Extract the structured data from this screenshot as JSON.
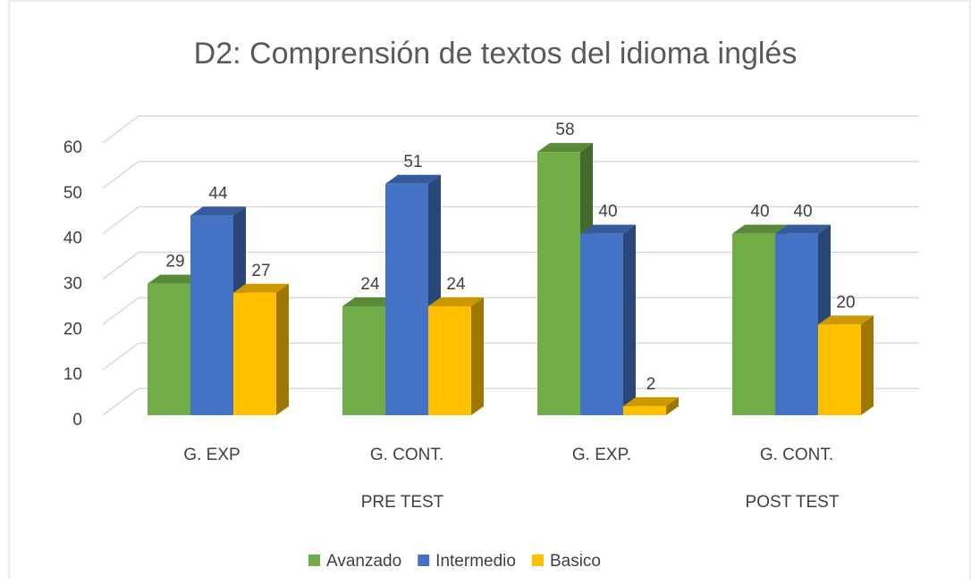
{
  "chart_data": {
    "type": "bar3d",
    "title": "D2: Comprensión de textos del idioma inglés",
    "categories": [
      "G. EXP",
      "G. CONT.",
      "G. EXP.",
      "G. CONT."
    ],
    "groups": [
      "PRE TEST",
      "POST TEST"
    ],
    "series": [
      {
        "name": "Avanzado",
        "color": "#70ad47",
        "values": [
          29,
          24,
          58,
          40
        ]
      },
      {
        "name": "Intermedio",
        "color": "#4472c4",
        "values": [
          44,
          51,
          40,
          40
        ]
      },
      {
        "name": "Basico",
        "color": "#ffc000",
        "values": [
          27,
          24,
          2,
          20
        ]
      }
    ],
    "ylim": [
      0,
      60
    ],
    "yticks": [
      0,
      10,
      20,
      30,
      40,
      50,
      60
    ],
    "grid": true,
    "legend": "bottom"
  }
}
